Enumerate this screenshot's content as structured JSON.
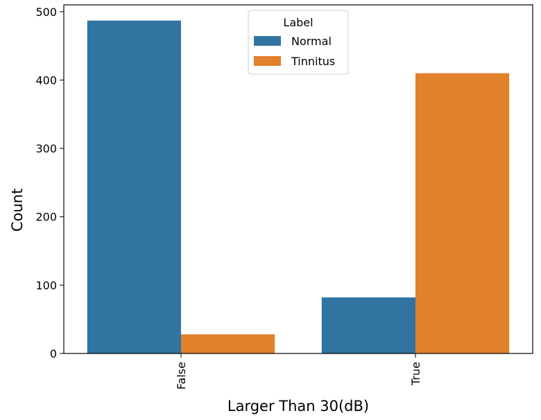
{
  "chart_data": {
    "type": "bar",
    "categories": [
      "False",
      "True"
    ],
    "series": [
      {
        "name": "Normal",
        "values": [
          487,
          82
        ],
        "color": "#3274a1"
      },
      {
        "name": "Tinnitus",
        "values": [
          28,
          410
        ],
        "color": "#e1812c"
      }
    ],
    "xlabel": "Larger Than 30(dB)",
    "ylabel": "Count",
    "ylim": [
      0,
      510
    ],
    "yticks": [
      0,
      100,
      200,
      300,
      400,
      500
    ],
    "legend": {
      "title": "Label",
      "placement": "top-center"
    },
    "grid": false
  }
}
